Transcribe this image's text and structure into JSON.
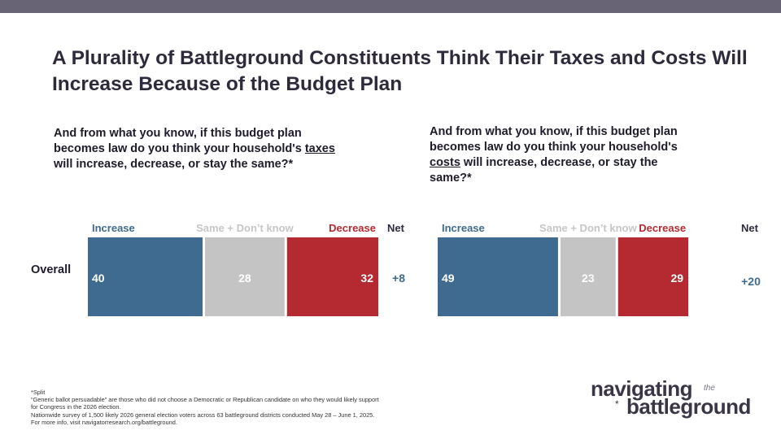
{
  "title": "A Plurality of Battleground Constituents Think Their Taxes and Costs Will Increase Because of the Budget Plan",
  "questions": {
    "left": {
      "before": "And from what you know, if this budget plan becomes law do you think your household's ",
      "emphasis": "taxes",
      "after": " will increase, decrease, or stay the same?*"
    },
    "right": {
      "before": "And from what you know, if this budget plan becomes law do you think your household's ",
      "emphasis": "costs",
      "after": " will increase, decrease, or stay the same?*"
    }
  },
  "colors": {
    "increase": "#3e6b8f",
    "same": "#c4c4c4",
    "decrease": "#b52a30",
    "header_increase": "#3e6b8f",
    "header_same": "#c6c6c6",
    "header_decrease": "#b52a30",
    "net_text": "#3e6b8f"
  },
  "chart_data": [
    {
      "type": "bar",
      "orientation": "horizontal-stacked",
      "title": "Taxes",
      "row_label": "Overall",
      "categories": [
        "Increase",
        "Same + Don't know",
        "Decrease"
      ],
      "category_labels": [
        "Increase",
        "Same + Don’t know",
        "Decrease"
      ],
      "values": [
        40,
        28,
        32
      ],
      "net_header": "Net",
      "net_value": "+8",
      "xlim": [
        0,
        100
      ]
    },
    {
      "type": "bar",
      "orientation": "horizontal-stacked",
      "title": "Costs",
      "row_label": "",
      "categories": [
        "Increase",
        "Same + Don't know",
        "Decrease"
      ],
      "category_labels": [
        "Increase",
        "Same + Don’t know",
        "Decrease"
      ],
      "values": [
        49,
        23,
        29
      ],
      "net_header": "Net",
      "net_value": "+20",
      "xlim": [
        0,
        100
      ]
    }
  ],
  "footer": [
    "*Split",
    "“Generic ballot persuadable” are those who did not choose a Democratic or Republican candidate on who they would likely support",
    "for Congress in the 2026 election.",
    "Nationwide survey of 1,500 likely 2026 general election voters across 63 battleground districts conducted May 28 – June 1, 2025.",
    "For more info, visit navigatorresearch.org/battleground."
  ],
  "logo": {
    "line1": "navigating",
    "the": "the",
    "line2": "battleground",
    "star": "*"
  }
}
